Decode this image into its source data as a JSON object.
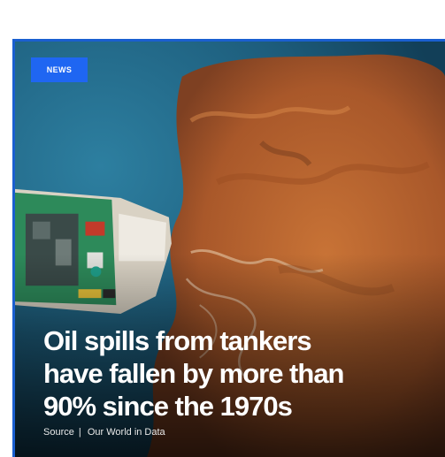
{
  "card": {
    "tag_label": "NEWS",
    "headline_lines": [
      "Oil spills from tankers",
      "have fallen by more than",
      "90% since the 1970s"
    ],
    "source_label": "Source",
    "source_separator": "|",
    "source_name": "Our World in Data"
  },
  "colors": {
    "accent_blue": "#1f66f2",
    "border_blue": "#1a5fd0",
    "sea": "#1b5a78",
    "oil": "#b8652e"
  },
  "image": {
    "subject": "aerial-photo-tanker-oil-spill"
  }
}
